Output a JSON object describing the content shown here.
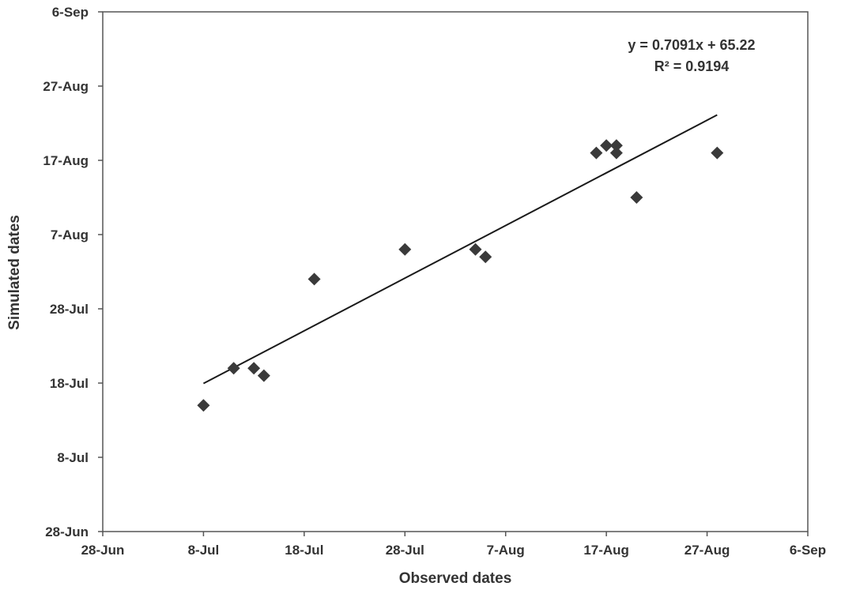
{
  "chart_data": {
    "type": "scatter",
    "title": "",
    "xlabel": "Observed dates",
    "ylabel": "Simulated dates",
    "xlim": [
      "28-Jun",
      "6-Sep"
    ],
    "ylim": [
      "28-Jun",
      "6-Sep"
    ],
    "x_ticks": [
      "28-Jun",
      "8-Jul",
      "18-Jul",
      "28-Jul",
      "7-Aug",
      "17-Aug",
      "27-Aug",
      "6-Sep"
    ],
    "y_ticks": [
      "28-Jun",
      "8-Jul",
      "18-Jul",
      "28-Jul",
      "7-Aug",
      "17-Aug",
      "27-Aug",
      "6-Sep"
    ],
    "grid": false,
    "legend": "none",
    "points": [
      {
        "x": "8-Jul",
        "y": "15-Jul"
      },
      {
        "x": "11-Jul",
        "y": "20-Jul"
      },
      {
        "x": "13-Jul",
        "y": "20-Jul"
      },
      {
        "x": "14-Jul",
        "y": "19-Jul"
      },
      {
        "x": "19-Jul",
        "y": "1-Aug"
      },
      {
        "x": "28-Jul",
        "y": "5-Aug"
      },
      {
        "x": "4-Aug",
        "y": "5-Aug"
      },
      {
        "x": "5-Aug",
        "y": "4-Aug"
      },
      {
        "x": "16-Aug",
        "y": "18-Aug"
      },
      {
        "x": "17-Aug",
        "y": "19-Aug"
      },
      {
        "x": "18-Aug",
        "y": "19-Aug"
      },
      {
        "x": "18-Aug",
        "y": "18-Aug"
      },
      {
        "x": "20-Aug",
        "y": "12-Aug"
      },
      {
        "x": "28-Aug",
        "y": "18-Aug"
      }
    ],
    "trendline": {
      "equation": "y = 0.7091x + 65.22",
      "r_squared": "R² = 0.9194",
      "x_range": [
        "8-Jul",
        "28-Aug"
      ],
      "slope": 0.7091
    },
    "marker_color": "#3a3a3a",
    "line_color": "#1a1a1a"
  }
}
